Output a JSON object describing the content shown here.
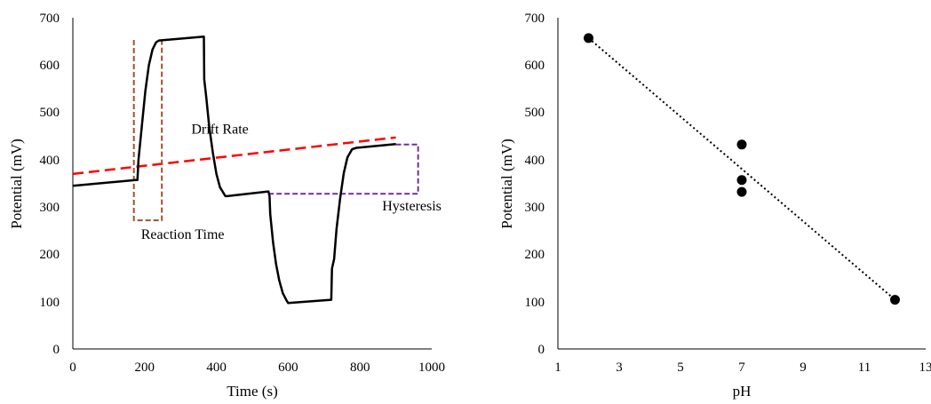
{
  "chart_data": [
    {
      "type": "line",
      "xlabel": "Time (s)",
      "ylabel": "Potential (mV)",
      "xlim": [
        0,
        1000
      ],
      "ylim": [
        0,
        700
      ],
      "xticks": [
        "0",
        "200",
        "400",
        "600",
        "800",
        "1000"
      ],
      "yticks": [
        "0",
        "100",
        "200",
        "300",
        "400",
        "500",
        "600",
        "700"
      ],
      "grid": false,
      "series": [
        {
          "color": "#000000",
          "points": [
            [
              0,
              345
            ],
            [
              175,
              357
            ],
            [
              180,
              357
            ],
            [
              183,
              400
            ],
            [
              192,
              470
            ],
            [
              202,
              545
            ],
            [
              212,
              600
            ],
            [
              222,
              633
            ],
            [
              232,
              648
            ],
            [
              240,
              652
            ],
            [
              365,
              660
            ],
            [
              366,
              570
            ],
            [
              372,
              530
            ],
            [
              380,
              470
            ],
            [
              390,
              415
            ],
            [
              400,
              370
            ],
            [
              410,
              342
            ],
            [
              425,
              323
            ],
            [
              430,
              323
            ],
            [
              545,
              333
            ],
            [
              548,
              323
            ],
            [
              550,
              285
            ],
            [
              558,
              225
            ],
            [
              566,
              180
            ],
            [
              575,
              145
            ],
            [
              585,
              118
            ],
            [
              595,
              103
            ],
            [
              600,
              97
            ],
            [
              720,
              104
            ],
            [
              722,
              170
            ],
            [
              728,
              190
            ],
            [
              735,
              255
            ],
            [
              745,
              320
            ],
            [
              755,
              372
            ],
            [
              765,
              405
            ],
            [
              778,
              422
            ],
            [
              790,
              425
            ],
            [
              900,
              433
            ]
          ]
        }
      ],
      "annotations": [
        {
          "label": "Drift Rate",
          "color": "#ff0000",
          "style": "dashed",
          "from": [
            0,
            370
          ],
          "to": [
            900,
            447
          ],
          "label_at": [
            330,
            455
          ]
        },
        {
          "label": "Reaction Time",
          "color": "#a0522d",
          "style": "dashed",
          "bracket": {
            "x1": 170,
            "x2": 248,
            "y_low": 272,
            "y_top": 653
          },
          "label_at": [
            190,
            233
          ]
        },
        {
          "label": "Hysteresis",
          "color": "#7030a0",
          "style": "dashed",
          "bracket": {
            "x1": 545,
            "x2": 962,
            "y_low": 328,
            "y_top": 432
          },
          "label_at": [
            862,
            293
          ]
        }
      ]
    },
    {
      "type": "scatter",
      "xlabel": "pH",
      "ylabel": "Potential (mV)",
      "xlim": [
        1,
        13
      ],
      "ylim": [
        0,
        700
      ],
      "xticks": [
        "1",
        "3",
        "5",
        "7",
        "9",
        "11",
        "13"
      ],
      "yticks": [
        "0",
        "100",
        "200",
        "300",
        "400",
        "500",
        "600",
        "700"
      ],
      "grid": false,
      "points": [
        [
          2,
          657
        ],
        [
          7,
          432
        ],
        [
          7,
          357
        ],
        [
          7,
          332
        ],
        [
          12,
          104
        ]
      ],
      "trendline": {
        "style": "dotted",
        "color": "#000000",
        "from": [
          2,
          657
        ],
        "to": [
          12,
          104
        ]
      }
    }
  ]
}
